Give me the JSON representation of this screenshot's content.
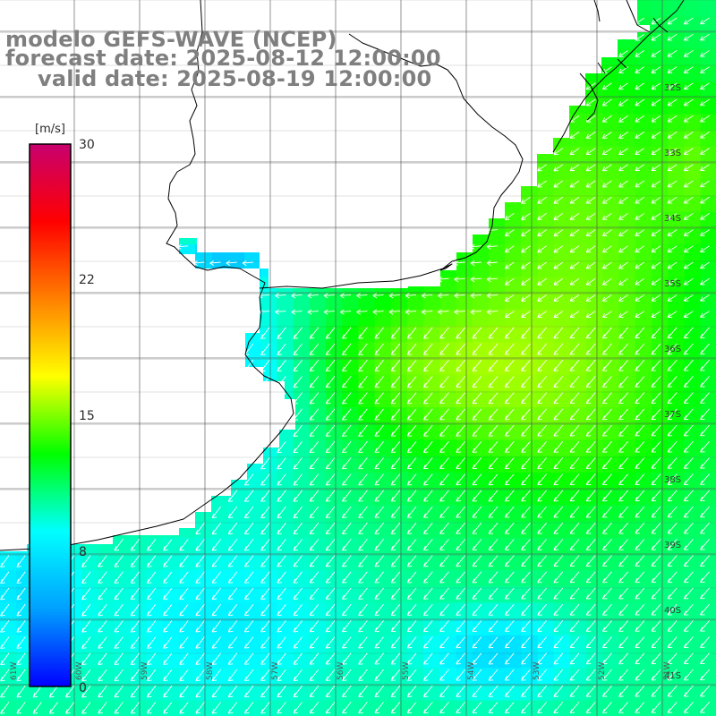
{
  "title": {
    "model": "modelo GEFS-WAVE (NCEP)",
    "forecast": "forecast date: 2025-08-12 12:00:00",
    "valid": "valid date: 2025-08-19 12:00:00"
  },
  "colorbar": {
    "unit": "[m/s]",
    "ticks": [
      "30",
      "22",
      "15",
      "8",
      "0"
    ],
    "min": 0,
    "max": 30,
    "colors": [
      "#0000ff",
      "#00a0ff",
      "#00ffff",
      "#00ff00",
      "#ffff00",
      "#ff8000",
      "#ff0000",
      "#c8006e"
    ]
  },
  "map": {
    "lat_labels": [
      "32S",
      "33S",
      "34S",
      "35S",
      "36S",
      "37S",
      "38S",
      "39S",
      "40S",
      "41S"
    ],
    "lon_labels": [
      "61W",
      "60W",
      "59W",
      "58W",
      "57W",
      "56W",
      "55W",
      "54W",
      "53W",
      "52W",
      "51W"
    ],
    "land_color": "#ffffff",
    "coast_color": "#000000",
    "grid_color": "#555555",
    "arrow_color": "#ffffff"
  }
}
